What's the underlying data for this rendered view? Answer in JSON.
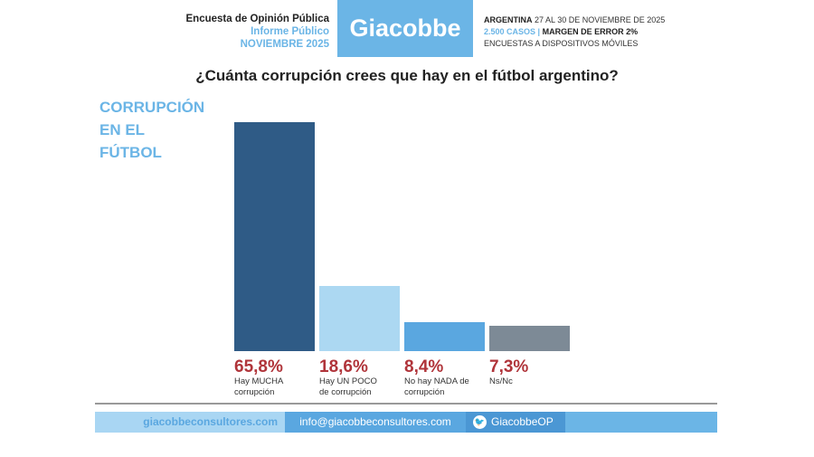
{
  "header": {
    "title": "Encuesta de Opinión Pública",
    "subtitle": "Informe Público",
    "date": "NOVIEMBRE 2025",
    "logo": "Giacobbe",
    "country": "ARGENTINA",
    "fieldwork": "27 AL 30 DE NOVIEMBRE DE 2025",
    "cases": "2.500 CASOS",
    "separator": "|",
    "margin": "MARGEN DE ERROR 2%",
    "method": "ENCUESTAS A DISPOSITIVOS MÓVILES"
  },
  "side_title": [
    "CORRUPCIÓN",
    "EN EL",
    "FÚTBOL"
  ],
  "footer": {
    "web": "giacobbeconsultores.com",
    "email": "info@giacobbeconsultores.com",
    "twitter": "GiacobbeOP"
  },
  "chart_data": {
    "type": "bar",
    "title": "¿Cuánta corrupción crees que hay en el fútbol argentino?",
    "categories": [
      "Hay MUCHA corrupción",
      "Hay UN POCO de corrupción",
      "No hay NADA de corrupción",
      "Ns/Nc"
    ],
    "values": [
      65.8,
      18.6,
      8.4,
      7.3
    ],
    "labels": [
      "65,8%",
      "18,6%",
      "8,4%",
      "7,3%"
    ],
    "colors": [
      "#2f5b86",
      "#acd8f2",
      "#5aa7e0",
      "#7d8a96"
    ],
    "ylim": [
      0,
      66
    ]
  }
}
